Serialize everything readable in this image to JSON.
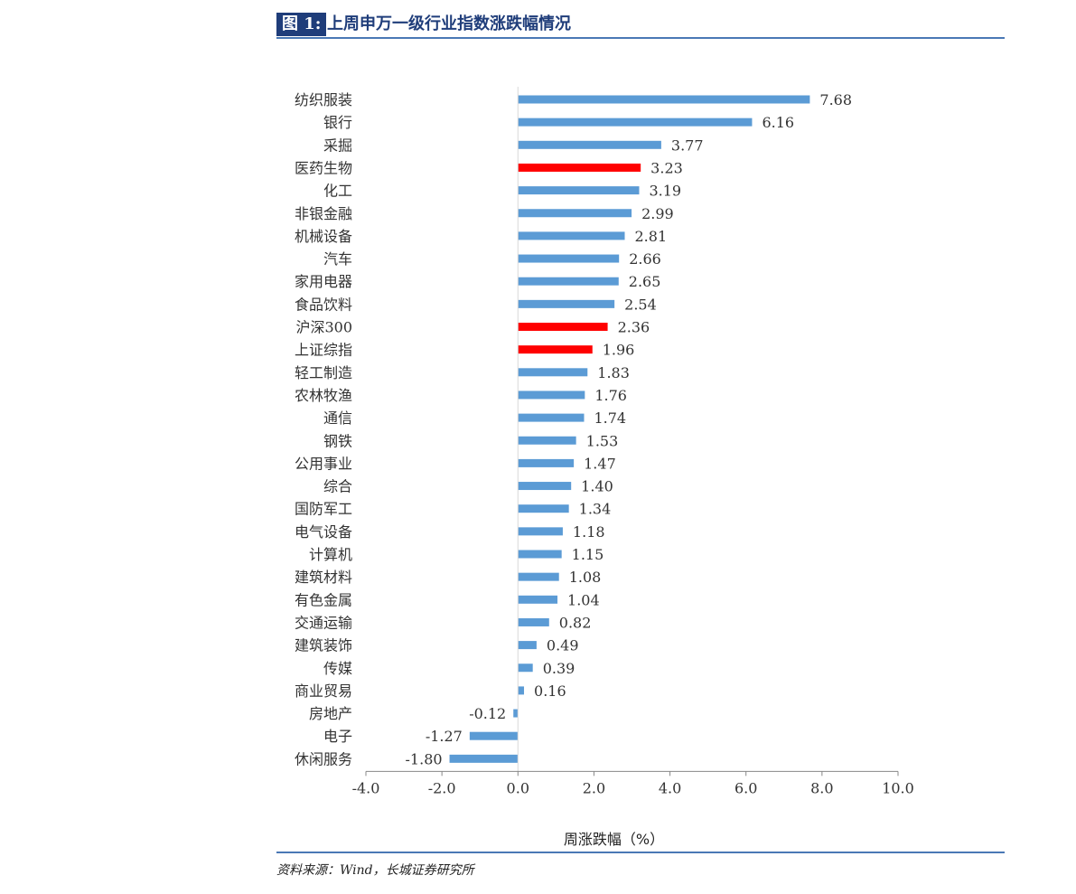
{
  "header": {
    "fig_label": "图 1:",
    "fig_title": "上周申万一级行业指数涨跌幅情况"
  },
  "footer": {
    "source": "资料来源：Wind，长城证券研究所"
  },
  "colors": {
    "bar_default": "#5b9bd5",
    "bar_highlight": "#ff0000",
    "accent": "#1f3d7a"
  },
  "chart_data": {
    "type": "bar",
    "orientation": "horizontal",
    "xlabel": "周涨跌幅（%）",
    "xlim": [
      -4.0,
      10.0
    ],
    "xticks": [
      "-4.0",
      "-2.0",
      "0.0",
      "2.0",
      "4.0",
      "6.0",
      "8.0",
      "10.0"
    ],
    "categories": [
      "纺织服装",
      "银行",
      "采掘",
      "医药生物",
      "化工",
      "非银金融",
      "机械设备",
      "汽车",
      "家用电器",
      "食品饮料",
      "沪深300",
      "上证综指",
      "轻工制造",
      "农林牧渔",
      "通信",
      "钢铁",
      "公用事业",
      "综合",
      "国防军工",
      "电气设备",
      "计算机",
      "建筑材料",
      "有色金属",
      "交通运输",
      "建筑装饰",
      "传媒",
      "商业贸易",
      "房地产",
      "电子",
      "休闲服务"
    ],
    "values": [
      7.68,
      6.16,
      3.77,
      3.23,
      3.19,
      2.99,
      2.81,
      2.66,
      2.65,
      2.54,
      2.36,
      1.96,
      1.83,
      1.76,
      1.74,
      1.53,
      1.47,
      1.4,
      1.34,
      1.18,
      1.15,
      1.08,
      1.04,
      0.82,
      0.49,
      0.39,
      0.16,
      -0.12,
      -1.27,
      -1.8
    ],
    "value_labels": [
      "7.68",
      "6.16",
      "3.77",
      "3.23",
      "3.19",
      "2.99",
      "2.81",
      "2.66",
      "2.65",
      "2.54",
      "2.36",
      "1.96",
      "1.83",
      "1.76",
      "1.74",
      "1.53",
      "1.47",
      "1.40",
      "1.34",
      "1.18",
      "1.15",
      "1.08",
      "1.04",
      "0.82",
      "0.49",
      "0.39",
      "0.16",
      "-0.12",
      "-1.27",
      "-1.80"
    ],
    "highlighted": [
      "医药生物",
      "沪深300",
      "上证综指"
    ],
    "grid": false
  }
}
